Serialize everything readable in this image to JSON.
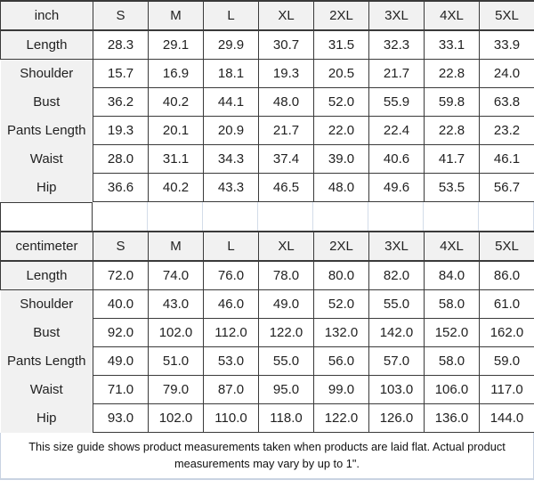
{
  "colors": {
    "border_dark": "#3a3a3a",
    "header_label_bg": "#f1f1f1",
    "separator_line": "#d3dce9",
    "footer_border": "#c9d3e2",
    "text": "#222222"
  },
  "tables": [
    {
      "unit": "inch",
      "sizes": [
        "S",
        "M",
        "L",
        "XL",
        "2XL",
        "3XL",
        "4XL",
        "5XL"
      ],
      "rows": [
        {
          "label": "Length",
          "values": [
            "28.3",
            "29.1",
            "29.9",
            "30.7",
            "31.5",
            "32.3",
            "33.1",
            "33.9"
          ]
        },
        {
          "label": "Shoulder",
          "values": [
            "15.7",
            "16.9",
            "18.1",
            "19.3",
            "20.5",
            "21.7",
            "22.8",
            "24.0"
          ]
        },
        {
          "label": "Bust",
          "values": [
            "36.2",
            "40.2",
            "44.1",
            "48.0",
            "52.0",
            "55.9",
            "59.8",
            "63.8"
          ]
        },
        {
          "label": "Pants Length",
          "values": [
            "19.3",
            "20.1",
            "20.9",
            "21.7",
            "22.0",
            "22.4",
            "22.8",
            "23.2"
          ]
        },
        {
          "label": "Waist",
          "values": [
            "28.0",
            "31.1",
            "34.3",
            "37.4",
            "39.0",
            "40.6",
            "41.7",
            "46.1"
          ]
        },
        {
          "label": "Hip",
          "values": [
            "36.6",
            "40.2",
            "43.3",
            "46.5",
            "48.0",
            "49.6",
            "53.5",
            "56.7"
          ]
        }
      ]
    },
    {
      "unit": "centimeter",
      "sizes": [
        "S",
        "M",
        "L",
        "XL",
        "2XL",
        "3XL",
        "4XL",
        "5XL"
      ],
      "rows": [
        {
          "label": "Length",
          "values": [
            "72.0",
            "74.0",
            "76.0",
            "78.0",
            "80.0",
            "82.0",
            "84.0",
            "86.0"
          ]
        },
        {
          "label": "Shoulder",
          "values": [
            "40.0",
            "43.0",
            "46.0",
            "49.0",
            "52.0",
            "55.0",
            "58.0",
            "61.0"
          ]
        },
        {
          "label": "Bust",
          "values": [
            "92.0",
            "102.0",
            "112.0",
            "122.0",
            "132.0",
            "142.0",
            "152.0",
            "162.0"
          ]
        },
        {
          "label": "Pants Length",
          "values": [
            "49.0",
            "51.0",
            "53.0",
            "55.0",
            "56.0",
            "57.0",
            "58.0",
            "59.0"
          ]
        },
        {
          "label": "Waist",
          "values": [
            "71.0",
            "79.0",
            "87.0",
            "95.0",
            "99.0",
            "103.0",
            "106.0",
            "117.0"
          ]
        },
        {
          "label": "Hip",
          "values": [
            "93.0",
            "102.0",
            "110.0",
            "118.0",
            "122.0",
            "126.0",
            "136.0",
            "144.0"
          ]
        }
      ]
    }
  ],
  "footer": {
    "note": "This size guide shows product measurements taken when products are laid flat. Actual product measurements may vary by up to 1\"."
  }
}
